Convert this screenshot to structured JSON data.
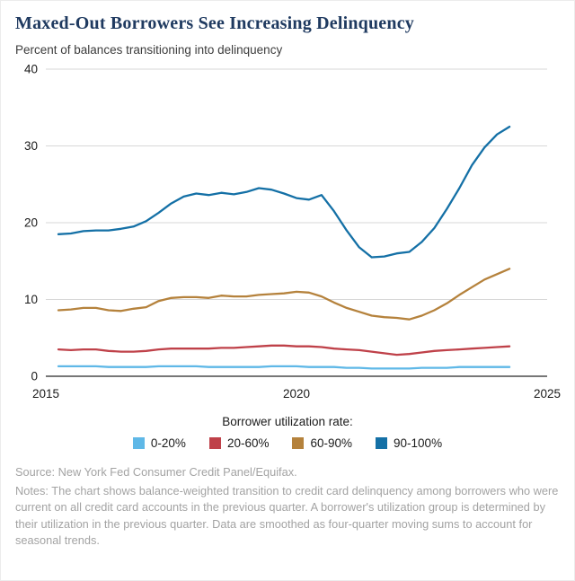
{
  "header": {
    "title": "Maxed-Out Borrowers See Increasing Delinquency",
    "subtitle": "Percent of balances transitioning into delinquency"
  },
  "legend": {
    "title": "Borrower utilization rate:"
  },
  "footer": {
    "source": "Source: New York Fed Consumer Credit Panel/Equifax.",
    "notes": "Notes: The chart shows balance-weighted transition to credit card delinquency among borrowers who were current on all credit card accounts in the previous quarter. A borrower's utilization group is determined by their utilization in the previous quarter. Data are smoothed as four-quarter moving sums to account for seasonal trends."
  },
  "chart_data": {
    "type": "line",
    "title": "Maxed-Out Borrowers See Increasing Delinquency",
    "subtitle": "Percent of balances transitioning into delinquency",
    "xlabel": "",
    "ylabel": "Percent of balances transitioning into delinquency",
    "xlim": [
      2015,
      2025
    ],
    "ylim": [
      0,
      40
    ],
    "xticks": [
      2015,
      2020,
      2025
    ],
    "yticks": [
      0,
      10,
      20,
      30,
      40
    ],
    "grid": "horizontal",
    "legend_position": "bottom",
    "colors": {
      "grid": "#d7d7d7",
      "axis": "#4a4a4a",
      "tick_label": "#1a1a1a",
      "title": "#1f3a60"
    },
    "x": [
      2015.25,
      2015.5,
      2015.75,
      2016,
      2016.25,
      2016.5,
      2016.75,
      2017,
      2017.25,
      2017.5,
      2017.75,
      2018,
      2018.25,
      2018.5,
      2018.75,
      2019,
      2019.25,
      2019.5,
      2019.75,
      2020,
      2020.25,
      2020.5,
      2020.75,
      2021,
      2021.25,
      2021.5,
      2021.75,
      2022,
      2022.25,
      2022.5,
      2022.75,
      2023,
      2023.25,
      2023.5,
      2023.75,
      2024,
      2024.25
    ],
    "series": [
      {
        "name": "0-20%",
        "color": "#5fb8e7",
        "values": [
          1.3,
          1.3,
          1.3,
          1.3,
          1.2,
          1.2,
          1.2,
          1.2,
          1.3,
          1.3,
          1.3,
          1.3,
          1.2,
          1.2,
          1.2,
          1.2,
          1.2,
          1.3,
          1.3,
          1.3,
          1.2,
          1.2,
          1.2,
          1.1,
          1.1,
          1.0,
          1.0,
          1.0,
          1.0,
          1.1,
          1.1,
          1.1,
          1.2,
          1.2,
          1.2,
          1.2,
          1.2
        ]
      },
      {
        "name": "20-60%",
        "color": "#bf4149",
        "values": [
          3.5,
          3.4,
          3.5,
          3.5,
          3.3,
          3.2,
          3.2,
          3.3,
          3.5,
          3.6,
          3.6,
          3.6,
          3.6,
          3.7,
          3.7,
          3.8,
          3.9,
          4.0,
          4.0,
          3.9,
          3.9,
          3.8,
          3.6,
          3.5,
          3.4,
          3.2,
          3.0,
          2.8,
          2.9,
          3.1,
          3.3,
          3.4,
          3.5,
          3.6,
          3.7,
          3.8,
          3.9
        ]
      },
      {
        "name": "60-90%",
        "color": "#b5823c",
        "values": [
          8.6,
          8.7,
          8.9,
          8.9,
          8.6,
          8.5,
          8.8,
          9.0,
          9.8,
          10.2,
          10.3,
          10.3,
          10.2,
          10.5,
          10.4,
          10.4,
          10.6,
          10.7,
          10.8,
          11.0,
          10.9,
          10.4,
          9.6,
          8.9,
          8.4,
          7.9,
          7.7,
          7.6,
          7.4,
          7.9,
          8.6,
          9.5,
          10.6,
          11.6,
          12.6,
          13.3,
          14.0
        ]
      },
      {
        "name": "90-100%",
        "color": "#1470a6",
        "values": [
          18.5,
          18.6,
          18.9,
          19.0,
          19.0,
          19.2,
          19.5,
          20.2,
          21.3,
          22.5,
          23.4,
          23.8,
          23.6,
          23.9,
          23.7,
          24.0,
          24.5,
          24.3,
          23.8,
          23.2,
          23.0,
          23.6,
          21.5,
          19.0,
          16.8,
          15.5,
          15.6,
          16.0,
          16.2,
          17.5,
          19.3,
          21.8,
          24.5,
          27.5,
          29.8,
          31.5,
          32.5
        ]
      }
    ]
  }
}
